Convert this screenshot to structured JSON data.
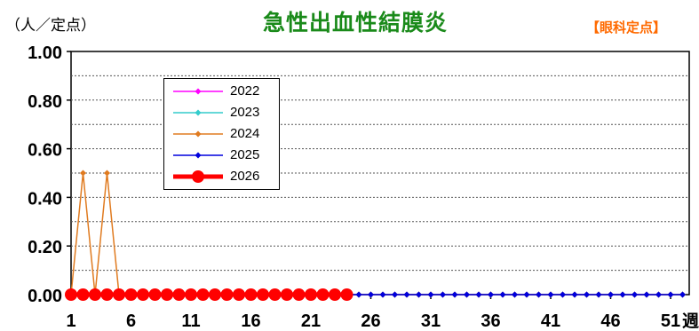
{
  "header": {
    "unit": "（人／定点）",
    "title": "急性出血性結膜炎",
    "department": "【眼科定点】"
  },
  "chart_data": {
    "type": "line",
    "title": "急性出血性結膜炎",
    "ylabel": "（人／定点）",
    "xlabel": "週",
    "ylim": [
      0,
      1.0
    ],
    "yticks": [
      "0.00",
      "0.20",
      "0.40",
      "0.60",
      "0.80",
      "1.00"
    ],
    "xlim": [
      1,
      52
    ],
    "xticks": [
      1,
      6,
      11,
      16,
      21,
      26,
      31,
      36,
      41,
      46,
      51
    ],
    "grid": true,
    "legend_position": "top-left",
    "series": [
      {
        "name": "2022",
        "color": "#ff00ff",
        "marker": "diamond",
        "line_width": 1.5,
        "weeks": [
          1,
          2,
          3,
          4,
          5,
          6,
          7,
          8,
          9,
          10,
          11,
          12,
          13,
          14,
          15,
          16,
          17,
          18,
          19,
          20,
          21,
          22,
          23,
          24,
          25,
          26,
          27,
          28,
          29,
          30,
          31,
          32,
          33,
          34,
          35,
          36,
          37,
          38,
          39,
          40,
          41,
          42,
          43,
          44,
          45,
          46,
          47,
          48,
          49,
          50,
          51,
          52
        ],
        "values": [
          0,
          0,
          0,
          0,
          0,
          0,
          0,
          0,
          0,
          0,
          0,
          0,
          0,
          0,
          0,
          0,
          0,
          0,
          0,
          0,
          0,
          0,
          0,
          0,
          0,
          0,
          0,
          0,
          0,
          0,
          0,
          0,
          0,
          0,
          0,
          0,
          0,
          0,
          0,
          0,
          0,
          0,
          0,
          0,
          0,
          0,
          0,
          0,
          0,
          0,
          0,
          0
        ]
      },
      {
        "name": "2023",
        "color": "#33cccc",
        "marker": "diamond",
        "line_width": 1.5,
        "weeks": [
          1,
          2,
          3,
          4,
          5,
          6,
          7,
          8,
          9,
          10,
          11,
          12,
          13,
          14,
          15,
          16,
          17,
          18,
          19,
          20,
          21,
          22,
          23,
          24,
          25,
          26,
          27,
          28,
          29,
          30,
          31,
          32,
          33,
          34,
          35,
          36,
          37,
          38,
          39,
          40,
          41,
          42,
          43,
          44,
          45,
          46,
          47,
          48,
          49,
          50,
          51,
          52
        ],
        "values": [
          0,
          0,
          0,
          0,
          0,
          0,
          0,
          0,
          0,
          0,
          0,
          0,
          0,
          0,
          0,
          0,
          0,
          0,
          0,
          0,
          0,
          0,
          0,
          0,
          0,
          0,
          0,
          0,
          0,
          0,
          0,
          0,
          0,
          0,
          0,
          0,
          0,
          0,
          0,
          0,
          0,
          0,
          0,
          0,
          0,
          0,
          0,
          0,
          0,
          0,
          0,
          0
        ]
      },
      {
        "name": "2024",
        "color": "#e07b20",
        "marker": "diamond",
        "line_width": 1.5,
        "weeks": [
          1,
          2,
          3,
          4,
          5,
          6,
          7,
          8,
          9,
          10,
          11,
          12,
          13,
          14,
          15,
          16,
          17,
          18,
          19,
          20,
          21,
          22,
          23,
          24,
          25,
          26,
          27,
          28,
          29,
          30,
          31,
          32,
          33,
          34,
          35,
          36,
          37,
          38,
          39,
          40,
          41,
          42,
          43,
          44,
          45,
          46,
          47,
          48,
          49,
          50,
          51,
          52
        ],
        "values": [
          0,
          0.5,
          0,
          0.5,
          0,
          0,
          0,
          0,
          0,
          0,
          0,
          0,
          0,
          0,
          0,
          0,
          0,
          0,
          0,
          0,
          0,
          0,
          0,
          0,
          0,
          0,
          0,
          0,
          0,
          0,
          0,
          0,
          0,
          0,
          0,
          0,
          0,
          0,
          0,
          0,
          0,
          0,
          0,
          0,
          0,
          0,
          0,
          0,
          0,
          0,
          0,
          0
        ]
      },
      {
        "name": "2025",
        "color": "#0000dd",
        "marker": "diamond",
        "line_width": 1.5,
        "weeks": [
          1,
          2,
          3,
          4,
          5,
          6,
          7,
          8,
          9,
          10,
          11,
          12,
          13,
          14,
          15,
          16,
          17,
          18,
          19,
          20,
          21,
          22,
          23,
          24,
          25,
          26,
          27,
          28,
          29,
          30,
          31,
          32,
          33,
          34,
          35,
          36,
          37,
          38,
          39,
          40,
          41,
          42,
          43,
          44,
          45,
          46,
          47,
          48,
          49,
          50,
          51,
          52
        ],
        "values": [
          0,
          0,
          0,
          0,
          0,
          0,
          0,
          0,
          0,
          0,
          0,
          0,
          0,
          0,
          0,
          0,
          0,
          0,
          0,
          0,
          0,
          0,
          0,
          0,
          0,
          0,
          0,
          0,
          0,
          0,
          0,
          0,
          0,
          0,
          0,
          0,
          0,
          0,
          0,
          0,
          0,
          0,
          0,
          0,
          0,
          0,
          0,
          0,
          0,
          0,
          0,
          0
        ]
      },
      {
        "name": "2026",
        "color": "#ff0000",
        "marker": "circle",
        "line_width": 5,
        "weeks": [
          1,
          2,
          3,
          4,
          5,
          6,
          7,
          8,
          9,
          10,
          11,
          12,
          13,
          14,
          15,
          16,
          17,
          18,
          19,
          20,
          21,
          22,
          23,
          24
        ],
        "values": [
          0,
          0,
          0,
          0,
          0,
          0,
          0,
          0,
          0,
          0,
          0,
          0,
          0,
          0,
          0,
          0,
          0,
          0,
          0,
          0,
          0,
          0,
          0,
          0
        ]
      }
    ]
  }
}
